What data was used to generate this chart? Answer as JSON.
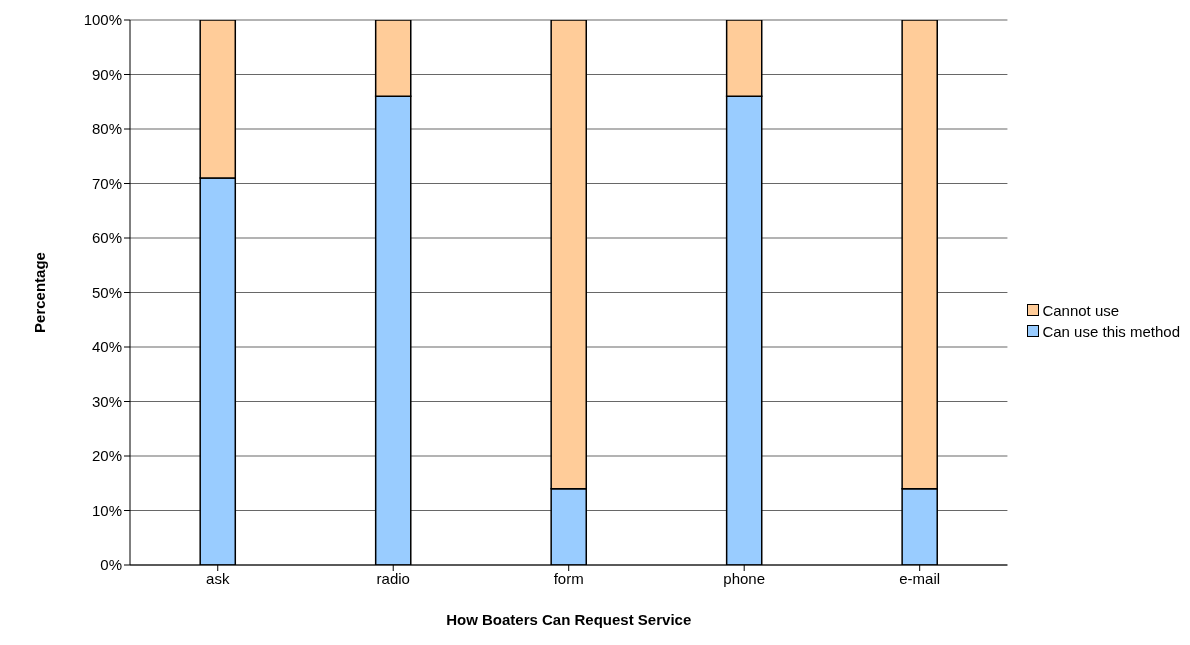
{
  "chart_data": {
    "type": "bar",
    "stacked": true,
    "xlabel": "How Boaters Can Request Service",
    "ylabel": "Percentage",
    "categories": [
      "ask",
      "radio",
      "form",
      "phone",
      "e-mail"
    ],
    "series": [
      {
        "name": "Can use this method",
        "color": "#99ccff",
        "values": [
          71,
          86,
          14,
          86,
          14
        ]
      },
      {
        "name": "Cannot use",
        "color": "#ffcc99",
        "values": [
          29,
          14,
          86,
          14,
          86
        ]
      }
    ],
    "ylim": [
      0,
      100
    ],
    "yticks": [
      {
        "value": 0,
        "label": "0%"
      },
      {
        "value": 10,
        "label": "10%"
      },
      {
        "value": 20,
        "label": "20%"
      },
      {
        "value": 30,
        "label": "30%"
      },
      {
        "value": 40,
        "label": "40%"
      },
      {
        "value": 50,
        "label": "50%"
      },
      {
        "value": 60,
        "label": "60%"
      },
      {
        "value": 70,
        "label": "70%"
      },
      {
        "value": 80,
        "label": "80%"
      },
      {
        "value": 90,
        "label": "90%"
      },
      {
        "value": 100,
        "label": "100%"
      }
    ],
    "grid": "y",
    "legend": "right"
  }
}
